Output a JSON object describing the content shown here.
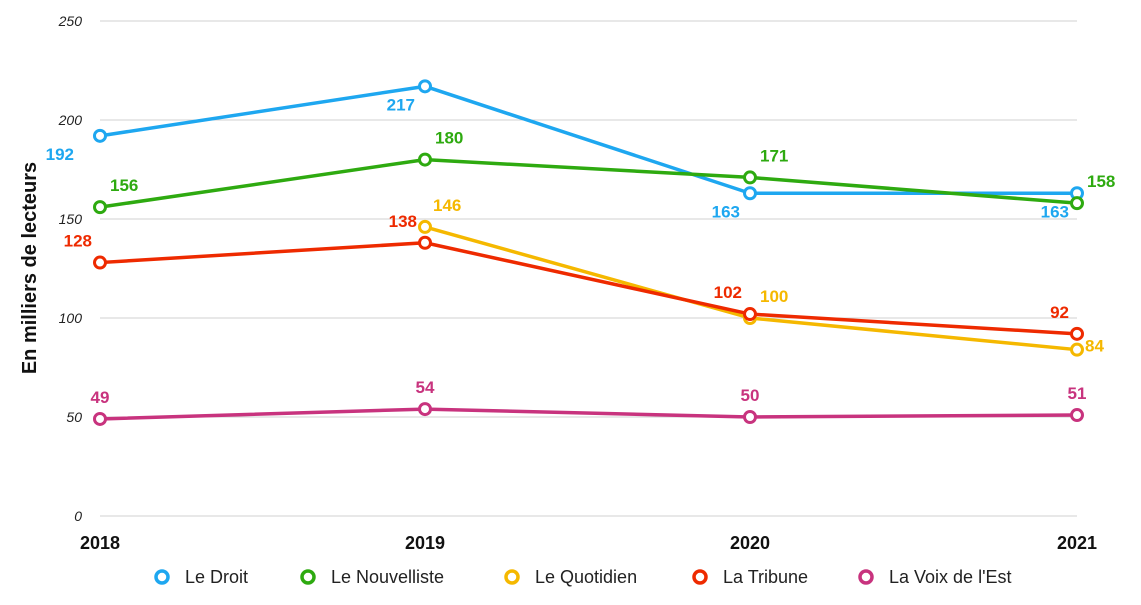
{
  "chart_data": {
    "type": "line",
    "ylabel": "En milliers de lecteurs",
    "xlabel": "",
    "ylim": [
      0,
      250
    ],
    "yticks": [
      0,
      50,
      100,
      150,
      200,
      250
    ],
    "grid": true,
    "legend_position": "bottom",
    "categories": [
      "2018",
      "2019",
      "2020",
      "2021"
    ],
    "series": [
      {
        "name": "Le Droit",
        "color": "#1ea7f0",
        "values": [
          192,
          217,
          163,
          163
        ]
      },
      {
        "name": "Le Nouvelliste",
        "color": "#2eaa10",
        "values": [
          156,
          180,
          171,
          158
        ]
      },
      {
        "name": "Le Quotidien",
        "color": "#f5b800",
        "values": [
          null,
          146,
          100,
          84
        ]
      },
      {
        "name": "La Tribune",
        "color": "#ee2a00",
        "values": [
          128,
          138,
          102,
          92
        ]
      },
      {
        "name": "La Voix de l'Est",
        "color": "#c8337e",
        "values": [
          49,
          54,
          50,
          51
        ]
      }
    ]
  }
}
